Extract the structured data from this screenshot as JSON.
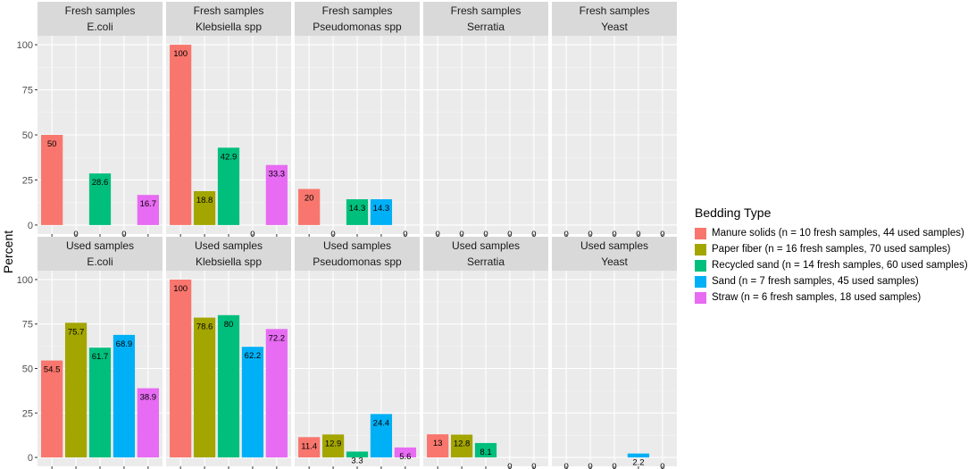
{
  "chart_data": {
    "type": "bar",
    "ylabel": "Percent",
    "ylim": [
      0,
      100
    ],
    "yticks": [
      "0",
      "25",
      "50",
      "75",
      "100"
    ],
    "legend": {
      "title": "Bedding Type",
      "entries": [
        {
          "name": "Manure solids (n = 10 fresh samples, 44 used samples)",
          "color": "#F8766D"
        },
        {
          "name": "Paper fiber (n = 16 fresh samples, 70 used samples)",
          "color": "#A3A500"
        },
        {
          "name": "Recycled sand (n = 14 fresh samples, 60 used samples)",
          "color": "#00BF7D"
        },
        {
          "name": "Sand (n = 7 fresh samples, 45 used samples)",
          "color": "#00B0F6"
        },
        {
          "name": "Straw (n = 6 fresh samples, 18 used samples)",
          "color": "#E76BF3"
        }
      ]
    },
    "panels": [
      {
        "row": "Fresh samples",
        "col": "E.coli",
        "values": [
          50,
          0,
          28.6,
          0,
          16.7
        ],
        "labels": [
          "50",
          "0",
          "28.6",
          "0",
          "16.7"
        ]
      },
      {
        "row": "Fresh samples",
        "col": "Klebsiella spp",
        "values": [
          100,
          18.8,
          42.9,
          0,
          33.3
        ],
        "labels": [
          "100",
          "18.8",
          "42.9",
          "0",
          "33.3"
        ]
      },
      {
        "row": "Fresh samples",
        "col": "Pseudomonas spp",
        "values": [
          20,
          0,
          14.3,
          14.3,
          0
        ],
        "labels": [
          "20",
          "0",
          "14.3",
          "14.3",
          "0"
        ]
      },
      {
        "row": "Fresh samples",
        "col": "Serratia",
        "values": [
          0,
          0,
          0,
          0,
          0
        ],
        "labels": [
          "0",
          "0",
          "0",
          "0",
          "0"
        ]
      },
      {
        "row": "Fresh samples",
        "col": "Yeast",
        "values": [
          0,
          0,
          0,
          0,
          0
        ],
        "labels": [
          "0",
          "0",
          "0",
          "0",
          "0"
        ]
      },
      {
        "row": "Used samples",
        "col": "E.coli",
        "values": [
          54.5,
          75.7,
          61.7,
          68.9,
          38.9
        ],
        "labels": [
          "54.5",
          "75.7",
          "61.7",
          "68.9",
          "38.9"
        ]
      },
      {
        "row": "Used samples",
        "col": "Klebsiella spp",
        "values": [
          100,
          78.6,
          80,
          62.2,
          72.2
        ],
        "labels": [
          "100",
          "78.6",
          "80",
          "62.2",
          "72.2"
        ]
      },
      {
        "row": "Used samples",
        "col": "Pseudomonas spp",
        "values": [
          11.4,
          12.9,
          3.3,
          24.4,
          5.6
        ],
        "labels": [
          "11.4",
          "12.9",
          "3.3",
          "24.4",
          "5.6"
        ]
      },
      {
        "row": "Used samples",
        "col": "Serratia",
        "values": [
          13,
          12.8,
          8.1,
          0,
          0
        ],
        "labels": [
          "13",
          "12.8",
          "8.1",
          "0",
          "0"
        ]
      },
      {
        "row": "Used samples",
        "col": "Yeast",
        "values": [
          0,
          0,
          0,
          2.2,
          0
        ],
        "labels": [
          "0",
          "0",
          "0",
          "2.2",
          "0"
        ]
      }
    ]
  }
}
